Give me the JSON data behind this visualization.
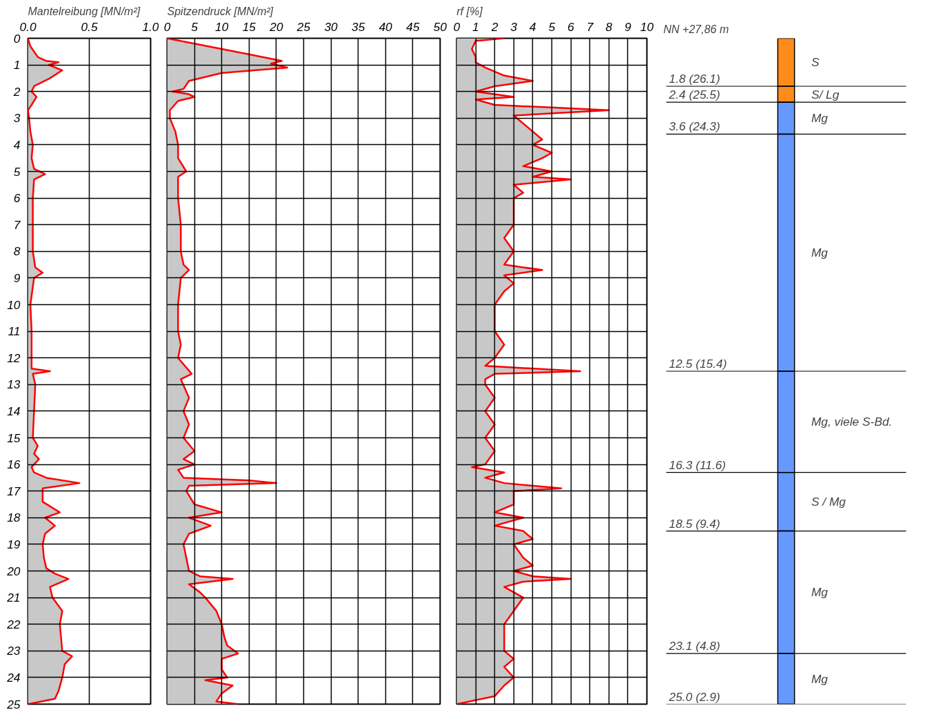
{
  "chart_data": [
    {
      "type": "area",
      "title": "Mantelreibung [MN/m²]",
      "orientation": "horizontal",
      "xlim": [
        0,
        1
      ],
      "xticks": [
        {
          "value": 0,
          "label": "0.0"
        },
        0.5,
        {
          "value": 1,
          "label": "1.0"
        }
      ],
      "ylim": [
        25,
        0
      ],
      "yticks": [
        0,
        1,
        2,
        3,
        4,
        5,
        6,
        7,
        8,
        9,
        10,
        11,
        12,
        13,
        14,
        15,
        16,
        17,
        18,
        19,
        20,
        21,
        22,
        23,
        24,
        25
      ],
      "grid": true,
      "series": [
        {
          "color": "#ff0000",
          "x": [
            0,
            0.3,
            0.7,
            0.85,
            0.9,
            1.0,
            1.2,
            1.5,
            1.8,
            2.0,
            2.2,
            2.5,
            2.7,
            3.0,
            3.5,
            4.0,
            4.5,
            4.9,
            5.1,
            5.3,
            6,
            7,
            8,
            8.6,
            8.8,
            9.0,
            10,
            11,
            12,
            12.4,
            12.5,
            12.6,
            13,
            14,
            15,
            15.3,
            15.6,
            15.8,
            16.1,
            16.3,
            16.5,
            16.7,
            16.9,
            17.4,
            17.8,
            18.0,
            18.3,
            18.6,
            19.0,
            19.5,
            19.9,
            20.1,
            20.3,
            20.6,
            21.0,
            21.5,
            22.0,
            22.5,
            23.0,
            23.2,
            23.5,
            24,
            24.5,
            24.8,
            25
          ],
          "values": [
            0.0,
            0.02,
            0.08,
            0.15,
            0.25,
            0.17,
            0.28,
            0.18,
            0.05,
            0.03,
            0.07,
            0.03,
            0.0,
            0.01,
            0.02,
            0.04,
            0.03,
            0.05,
            0.14,
            0.05,
            0.04,
            0.04,
            0.04,
            0.06,
            0.12,
            0.05,
            0.02,
            0.03,
            0.03,
            0.03,
            0.18,
            0.04,
            0.06,
            0.05,
            0.04,
            0.08,
            0.05,
            0.09,
            0.03,
            0.05,
            0.15,
            0.42,
            0.12,
            0.12,
            0.26,
            0.14,
            0.22,
            0.14,
            0.12,
            0.13,
            0.15,
            0.22,
            0.33,
            0.18,
            0.2,
            0.28,
            0.26,
            0.27,
            0.28,
            0.36,
            0.3,
            0.28,
            0.25,
            0.22,
            0.0
          ]
        }
      ]
    },
    {
      "type": "area",
      "title": "Spitzendruck [MN/m²]",
      "orientation": "horizontal",
      "xlim": [
        0,
        50
      ],
      "xticks": [
        0,
        5,
        10,
        15,
        20,
        25,
        30,
        35,
        40,
        45,
        50
      ],
      "ylim": [
        25,
        0
      ],
      "yticks": [
        0,
        1,
        2,
        3,
        4,
        5,
        6,
        7,
        8,
        9,
        10,
        11,
        12,
        13,
        14,
        15,
        16,
        17,
        18,
        19,
        20,
        21,
        22,
        23,
        24,
        25
      ],
      "grid": true,
      "tick_labels": "x",
      "series": [
        {
          "color": "#ff0000",
          "x": [
            0,
            0.2,
            0.4,
            0.6,
            0.85,
            0.95,
            1.1,
            1.3,
            1.6,
            1.9,
            2.0,
            2.1,
            2.2,
            2.35,
            2.7,
            3.0,
            3.5,
            4.0,
            4.5,
            5.0,
            5.2,
            6,
            7,
            8,
            8.5,
            8.7,
            9.0,
            10,
            11,
            11.5,
            12,
            12.6,
            12.8,
            13.5,
            14,
            14.5,
            15,
            15.5,
            15.8,
            16,
            16.2,
            16.5,
            16.6,
            16.7,
            16.8,
            17,
            17.5,
            17.8,
            18.0,
            18.3,
            18.6,
            19,
            19.5,
            20,
            20.2,
            20.3,
            20.5,
            20.8,
            21,
            21.5,
            22,
            22.5,
            22.8,
            23.1,
            23.3,
            23.7,
            24,
            24.1,
            24.3,
            24.6,
            24.9,
            25
          ],
          "values": [
            0,
            5,
            10,
            15,
            21,
            19,
            22,
            10,
            4,
            3,
            1,
            4,
            5,
            2,
            0.5,
            0.5,
            1.5,
            2,
            2,
            3.5,
            2,
            2,
            2.5,
            2.5,
            3,
            4,
            2.5,
            2,
            2,
            2.5,
            2,
            4.5,
            2.5,
            4,
            3,
            4,
            3,
            5,
            3,
            5,
            2,
            3,
            15,
            20,
            4,
            3.5,
            5,
            10,
            4,
            8,
            4,
            3,
            3.5,
            4,
            6,
            12,
            4,
            6,
            7,
            9,
            10,
            10.5,
            11,
            13,
            10,
            10,
            11,
            7,
            12,
            10,
            9,
            13
          ]
        }
      ]
    },
    {
      "type": "area",
      "title": "rf [%]",
      "orientation": "horizontal",
      "xlim": [
        0,
        10
      ],
      "xticks": [
        0,
        1,
        2,
        3,
        4,
        5,
        6,
        7,
        8,
        9,
        10
      ],
      "ylim": [
        25,
        0
      ],
      "yticks": [
        0,
        1,
        2,
        3,
        4,
        5,
        6,
        7,
        8,
        9,
        10,
        11,
        12,
        13,
        14,
        15,
        16,
        17,
        18,
        19,
        20,
        21,
        22,
        23,
        24,
        25
      ],
      "grid": true,
      "tick_labels": "x",
      "series": [
        {
          "color": "#ff0000",
          "x": [
            0,
            0.1,
            0.4,
            0.7,
            0.9,
            1.1,
            1.4,
            1.6,
            1.8,
            2.0,
            2.1,
            2.2,
            2.3,
            2.5,
            2.6,
            2.7,
            2.8,
            2.9,
            3.2,
            3.5,
            3.8,
            4.0,
            4.3,
            4.5,
            4.8,
            5.0,
            5.2,
            5.3,
            5.5,
            5.8,
            6.0,
            6.3,
            7,
            7.5,
            8,
            8.5,
            8.7,
            8.9,
            9.2,
            9.5,
            10,
            10.5,
            11,
            11.5,
            12,
            12.3,
            12.5,
            12.6,
            12.8,
            13.0,
            13.5,
            14,
            14.5,
            15,
            15.5,
            16,
            16.1,
            16.3,
            16.5,
            16.7,
            16.9,
            17.0,
            17.5,
            17.8,
            18,
            18.3,
            18.5,
            18.8,
            19.0,
            19.5,
            19.8,
            20,
            20.2,
            20.3,
            20.4,
            20.6,
            21,
            21.5,
            22,
            22.5,
            23,
            23.3,
            23.6,
            24,
            24.3,
            24.7,
            25
          ],
          "values": [
            2.5,
            1,
            0.8,
            1.0,
            1.0,
            1.5,
            2.5,
            4,
            2,
            1.0,
            2,
            3,
            1,
            2,
            5,
            8,
            5.5,
            3,
            3.5,
            4,
            4.5,
            4,
            5,
            4.5,
            3.5,
            5,
            4,
            6,
            3,
            3.5,
            3,
            3,
            3,
            2.5,
            3,
            2.5,
            4.5,
            2.5,
            3,
            2.5,
            2,
            2,
            2,
            2.5,
            2,
            1.5,
            6.5,
            2,
            1.5,
            1.5,
            2,
            1.5,
            2,
            1.5,
            2,
            1.5,
            0.8,
            2.5,
            1.5,
            2.5,
            5.5,
            3,
            3,
            2,
            3.5,
            2,
            3.5,
            4,
            3,
            3.5,
            4,
            3,
            4,
            6,
            3.5,
            2.5,
            3.5,
            3,
            2.5,
            2.5,
            2.5,
            3,
            2.5,
            3,
            2.5,
            2,
            0
          ]
        }
      ]
    },
    {
      "type": "bar",
      "title": "NN +27,86 m",
      "ylim": [
        25,
        0
      ],
      "tick_labels": false,
      "stacked": true,
      "categories": [
        null
      ],
      "series": [
        {
          "name": "S",
          "color": "#ff8c1a",
          "values": [
            1.8
          ]
        },
        {
          "name": "S/ Lg",
          "color": "#ff8c1a",
          "values": [
            0.6
          ]
        },
        {
          "name": "Mg",
          "color": "#6699ff",
          "values": [
            1.2
          ]
        },
        {
          "name": "Mg",
          "color": "#6699ff",
          "values": [
            8.9
          ]
        },
        {
          "name": "Mg, viele S-Bd.",
          "color": "#6699ff",
          "values": [
            3.8
          ]
        },
        {
          "name": "S / Mg",
          "color": "#6699ff",
          "values": [
            2.2
          ]
        },
        {
          "name": "Mg",
          "color": "#6699ff",
          "values": [
            4.6
          ]
        },
        {
          "name": "Mg",
          "color": "#6699ff",
          "values": [
            1.9
          ]
        }
      ],
      "ref_lines": [
        {
          "axis": "y",
          "value": 1.8,
          "label": "1.8 (26.1)"
        },
        {
          "axis": "y",
          "value": 2.4,
          "label": "2.4 (25.5)"
        },
        {
          "axis": "y",
          "value": 3.6,
          "label": "3.6 (24.3)"
        },
        {
          "axis": "y",
          "value": 12.5,
          "label": "12.5 (15.4)"
        },
        {
          "axis": "y",
          "value": 16.3,
          "label": "16.3 (11.6)"
        },
        {
          "axis": "y",
          "value": 18.5,
          "label": "18.5 (9.4)"
        },
        {
          "axis": "y",
          "value": 23.1,
          "label": "23.1 (4.8)"
        },
        {
          "axis": "y",
          "value": 25.0,
          "label": "25.0 (2.9)"
        }
      ]
    }
  ]
}
